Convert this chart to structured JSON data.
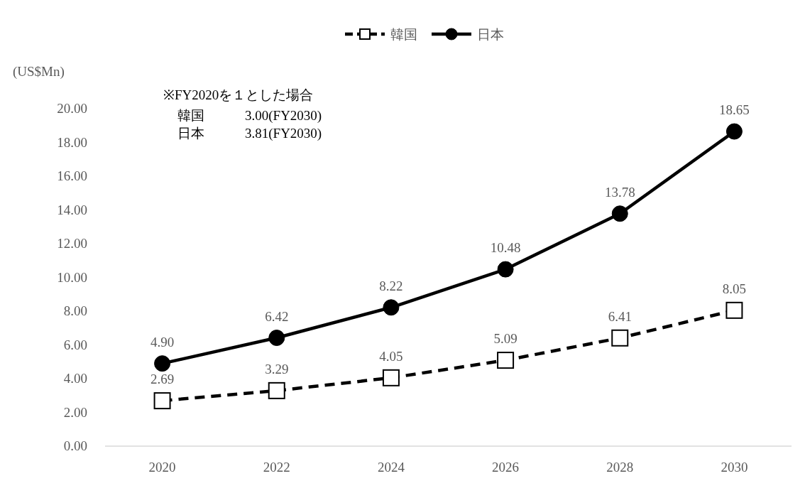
{
  "chart_data": {
    "type": "line",
    "ylabel": "(US$Mn)",
    "categories": [
      "2020",
      "2022",
      "2024",
      "2026",
      "2028",
      "2030"
    ],
    "ylim": [
      0,
      20
    ],
    "yticks": [
      {
        "value": 0,
        "label": "0.00"
      },
      {
        "value": 2,
        "label": "2.00"
      },
      {
        "value": 4,
        "label": "4.00"
      },
      {
        "value": 6,
        "label": "6.00"
      },
      {
        "value": 8,
        "label": "8.00"
      },
      {
        "value": 10,
        "label": "10.00"
      },
      {
        "value": 12,
        "label": "12.00"
      },
      {
        "value": 14,
        "label": "14.00"
      },
      {
        "value": 16,
        "label": "16.00"
      },
      {
        "value": 18,
        "label": "18.00"
      },
      {
        "value": 20,
        "label": "20.00"
      }
    ],
    "series": [
      {
        "name": "韓国",
        "color": "#000000",
        "marker": "square",
        "line_style": "dashed",
        "values": [
          2.69,
          3.29,
          4.05,
          5.09,
          6.41,
          8.05
        ],
        "value_labels": [
          "2.69",
          "3.29",
          "4.05",
          "5.09",
          "6.41",
          "8.05"
        ]
      },
      {
        "name": "日本",
        "color": "#000000",
        "marker": "circle",
        "line_style": "solid",
        "values": [
          4.9,
          6.42,
          8.22,
          10.48,
          13.78,
          18.65
        ],
        "value_labels": [
          "4.90",
          "6.42",
          "8.22",
          "10.48",
          "13.78",
          "18.65"
        ]
      }
    ],
    "legend": "top",
    "annotations": [
      "※FY2020を１とした場合",
      "韓国　　　3.00(FY2030)",
      "日本　　　3.81(FY2030)"
    ]
  }
}
